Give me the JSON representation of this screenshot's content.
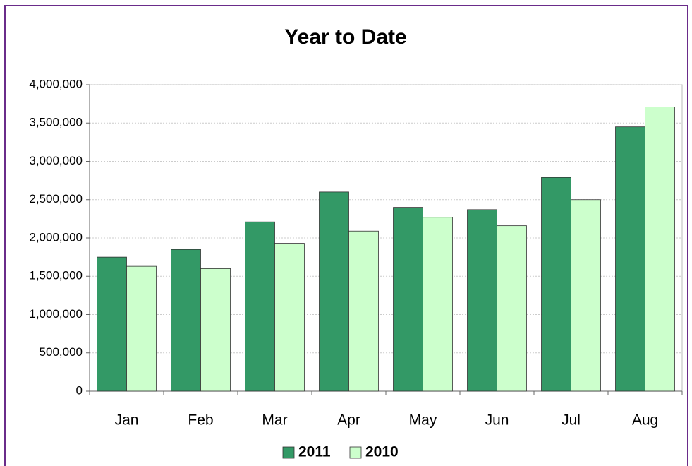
{
  "chart_data": {
    "type": "bar",
    "title": "Year to Date",
    "categories": [
      "Jan",
      "Feb",
      "Mar",
      "Apr",
      "May",
      "Jun",
      "Jul",
      "Aug"
    ],
    "series": [
      {
        "name": "2011",
        "color": "#339966",
        "values": [
          1750000,
          1850000,
          2210000,
          2600000,
          2400000,
          2370000,
          2790000,
          3450000
        ]
      },
      {
        "name": "2010",
        "color": "#ccffcc",
        "values": [
          1630000,
          1600000,
          1930000,
          2090000,
          2270000,
          2160000,
          2500000,
          3710000
        ]
      }
    ],
    "ylim": [
      0,
      4000000
    ],
    "yticks": [
      0,
      {
        "value": 500000,
        "label": "500,000"
      },
      {
        "value": 1000000,
        "label": "1,000,000"
      },
      {
        "value": 1500000,
        "label": "1,500,000"
      },
      {
        "value": 2000000,
        "label": "2,000,000"
      },
      {
        "value": 2500000,
        "label": "2,500,000"
      },
      {
        "value": 3000000,
        "label": "3,000,000"
      },
      {
        "value": 3500000,
        "label": "3,500,000"
      },
      {
        "value": 4000000,
        "label": "4,000,000"
      }
    ],
    "grid": true,
    "legend": "bottom"
  }
}
